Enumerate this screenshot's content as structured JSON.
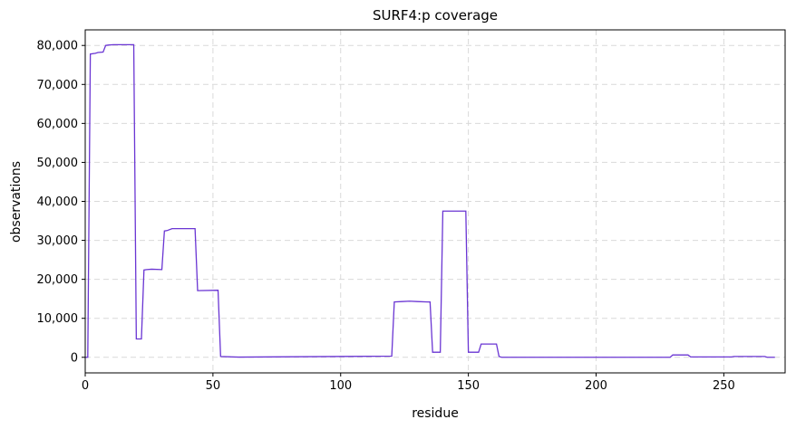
{
  "chart_data": {
    "type": "line",
    "title": "SURF4:p coverage",
    "xlabel": "residue",
    "ylabel": "observations",
    "xlim": [
      0,
      274
    ],
    "ylim": [
      -4000,
      84000
    ],
    "xticks": [
      0,
      50,
      100,
      150,
      200,
      250
    ],
    "xtick_labels": [
      "0",
      "50",
      "100",
      "150",
      "200",
      "250"
    ],
    "yticks": [
      0,
      10000,
      20000,
      30000,
      40000,
      50000,
      60000,
      70000,
      80000
    ],
    "ytick_labels": [
      "0",
      "10,000",
      "20,000",
      "30,000",
      "40,000",
      "50,000",
      "60,000",
      "70,000",
      "80,000"
    ],
    "grid": true,
    "line_color": "#6a35d3",
    "series": [
      {
        "x": [
          0,
          1,
          2,
          4,
          5,
          7,
          8,
          9,
          11,
          19,
          20,
          22,
          23,
          24,
          26,
          30,
          31,
          32,
          34,
          43,
          44,
          52,
          53,
          60,
          120,
          121,
          124,
          127,
          130,
          134,
          135,
          136,
          138,
          139,
          140,
          149,
          150,
          154,
          155,
          161,
          162,
          163,
          229,
          230,
          236,
          237,
          253,
          254,
          266,
          267,
          270
        ],
        "y": [
          0,
          0,
          77800,
          78000,
          78200,
          78300,
          80000,
          80100,
          80200,
          80200,
          4700,
          4700,
          22400,
          22500,
          22600,
          22500,
          32400,
          32500,
          33000,
          33000,
          17100,
          17200,
          200,
          50,
          300,
          14200,
          14300,
          14400,
          14300,
          14200,
          14200,
          1300,
          1300,
          1300,
          37500,
          37500,
          1300,
          1300,
          3400,
          3400,
          200,
          0,
          0,
          600,
          600,
          100,
          100,
          200,
          200,
          0,
          0
        ]
      }
    ]
  }
}
